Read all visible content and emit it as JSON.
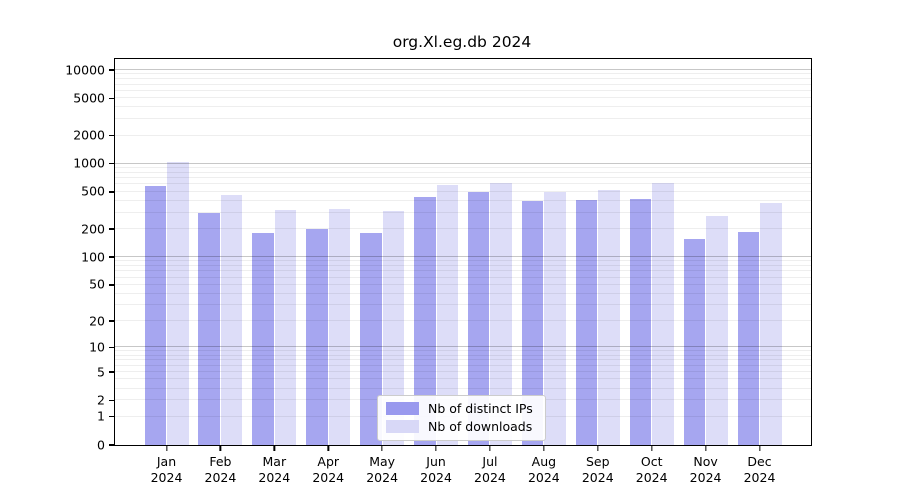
{
  "figure": {
    "title": "org.Xl.eg.db 2024"
  },
  "legend": {
    "items": [
      {
        "label": "Nb of distinct IPs",
        "color": "#9999ee"
      },
      {
        "label": "Nb of downloads",
        "color": "#d8d8f7"
      }
    ]
  },
  "chart_data": {
    "type": "bar",
    "title": "org.Xl.eg.db 2024",
    "categories": [
      "Jan 2024",
      "Feb 2024",
      "Mar 2024",
      "Apr 2024",
      "May 2024",
      "Jun 2024",
      "Jul 2024",
      "Aug 2024",
      "Sep 2024",
      "Oct 2024",
      "Nov 2024",
      "Dec 2024"
    ],
    "series": [
      {
        "name": "Nb of distinct IPs",
        "color": "#9999ee",
        "values": [
          583,
          298,
          180,
          199,
          183,
          437,
          494,
          397,
          409,
          424,
          156,
          187
        ]
      },
      {
        "name": "Nb of downloads",
        "color": "#d8d8f7",
        "values": [
          1056,
          468,
          318,
          331,
          311,
          587,
          622,
          498,
          528,
          622,
          274,
          380
        ]
      }
    ],
    "yscale": "log1p",
    "yticks": [
      0,
      1,
      2,
      5,
      10,
      20,
      50,
      100,
      200,
      500,
      1000,
      2000,
      5000,
      10000
    ],
    "ylim": [
      0,
      13100
    ],
    "xlabel": "",
    "ylabel": "",
    "grid": "horizontal, minor and major decade lines",
    "legend_position": "lower center"
  }
}
